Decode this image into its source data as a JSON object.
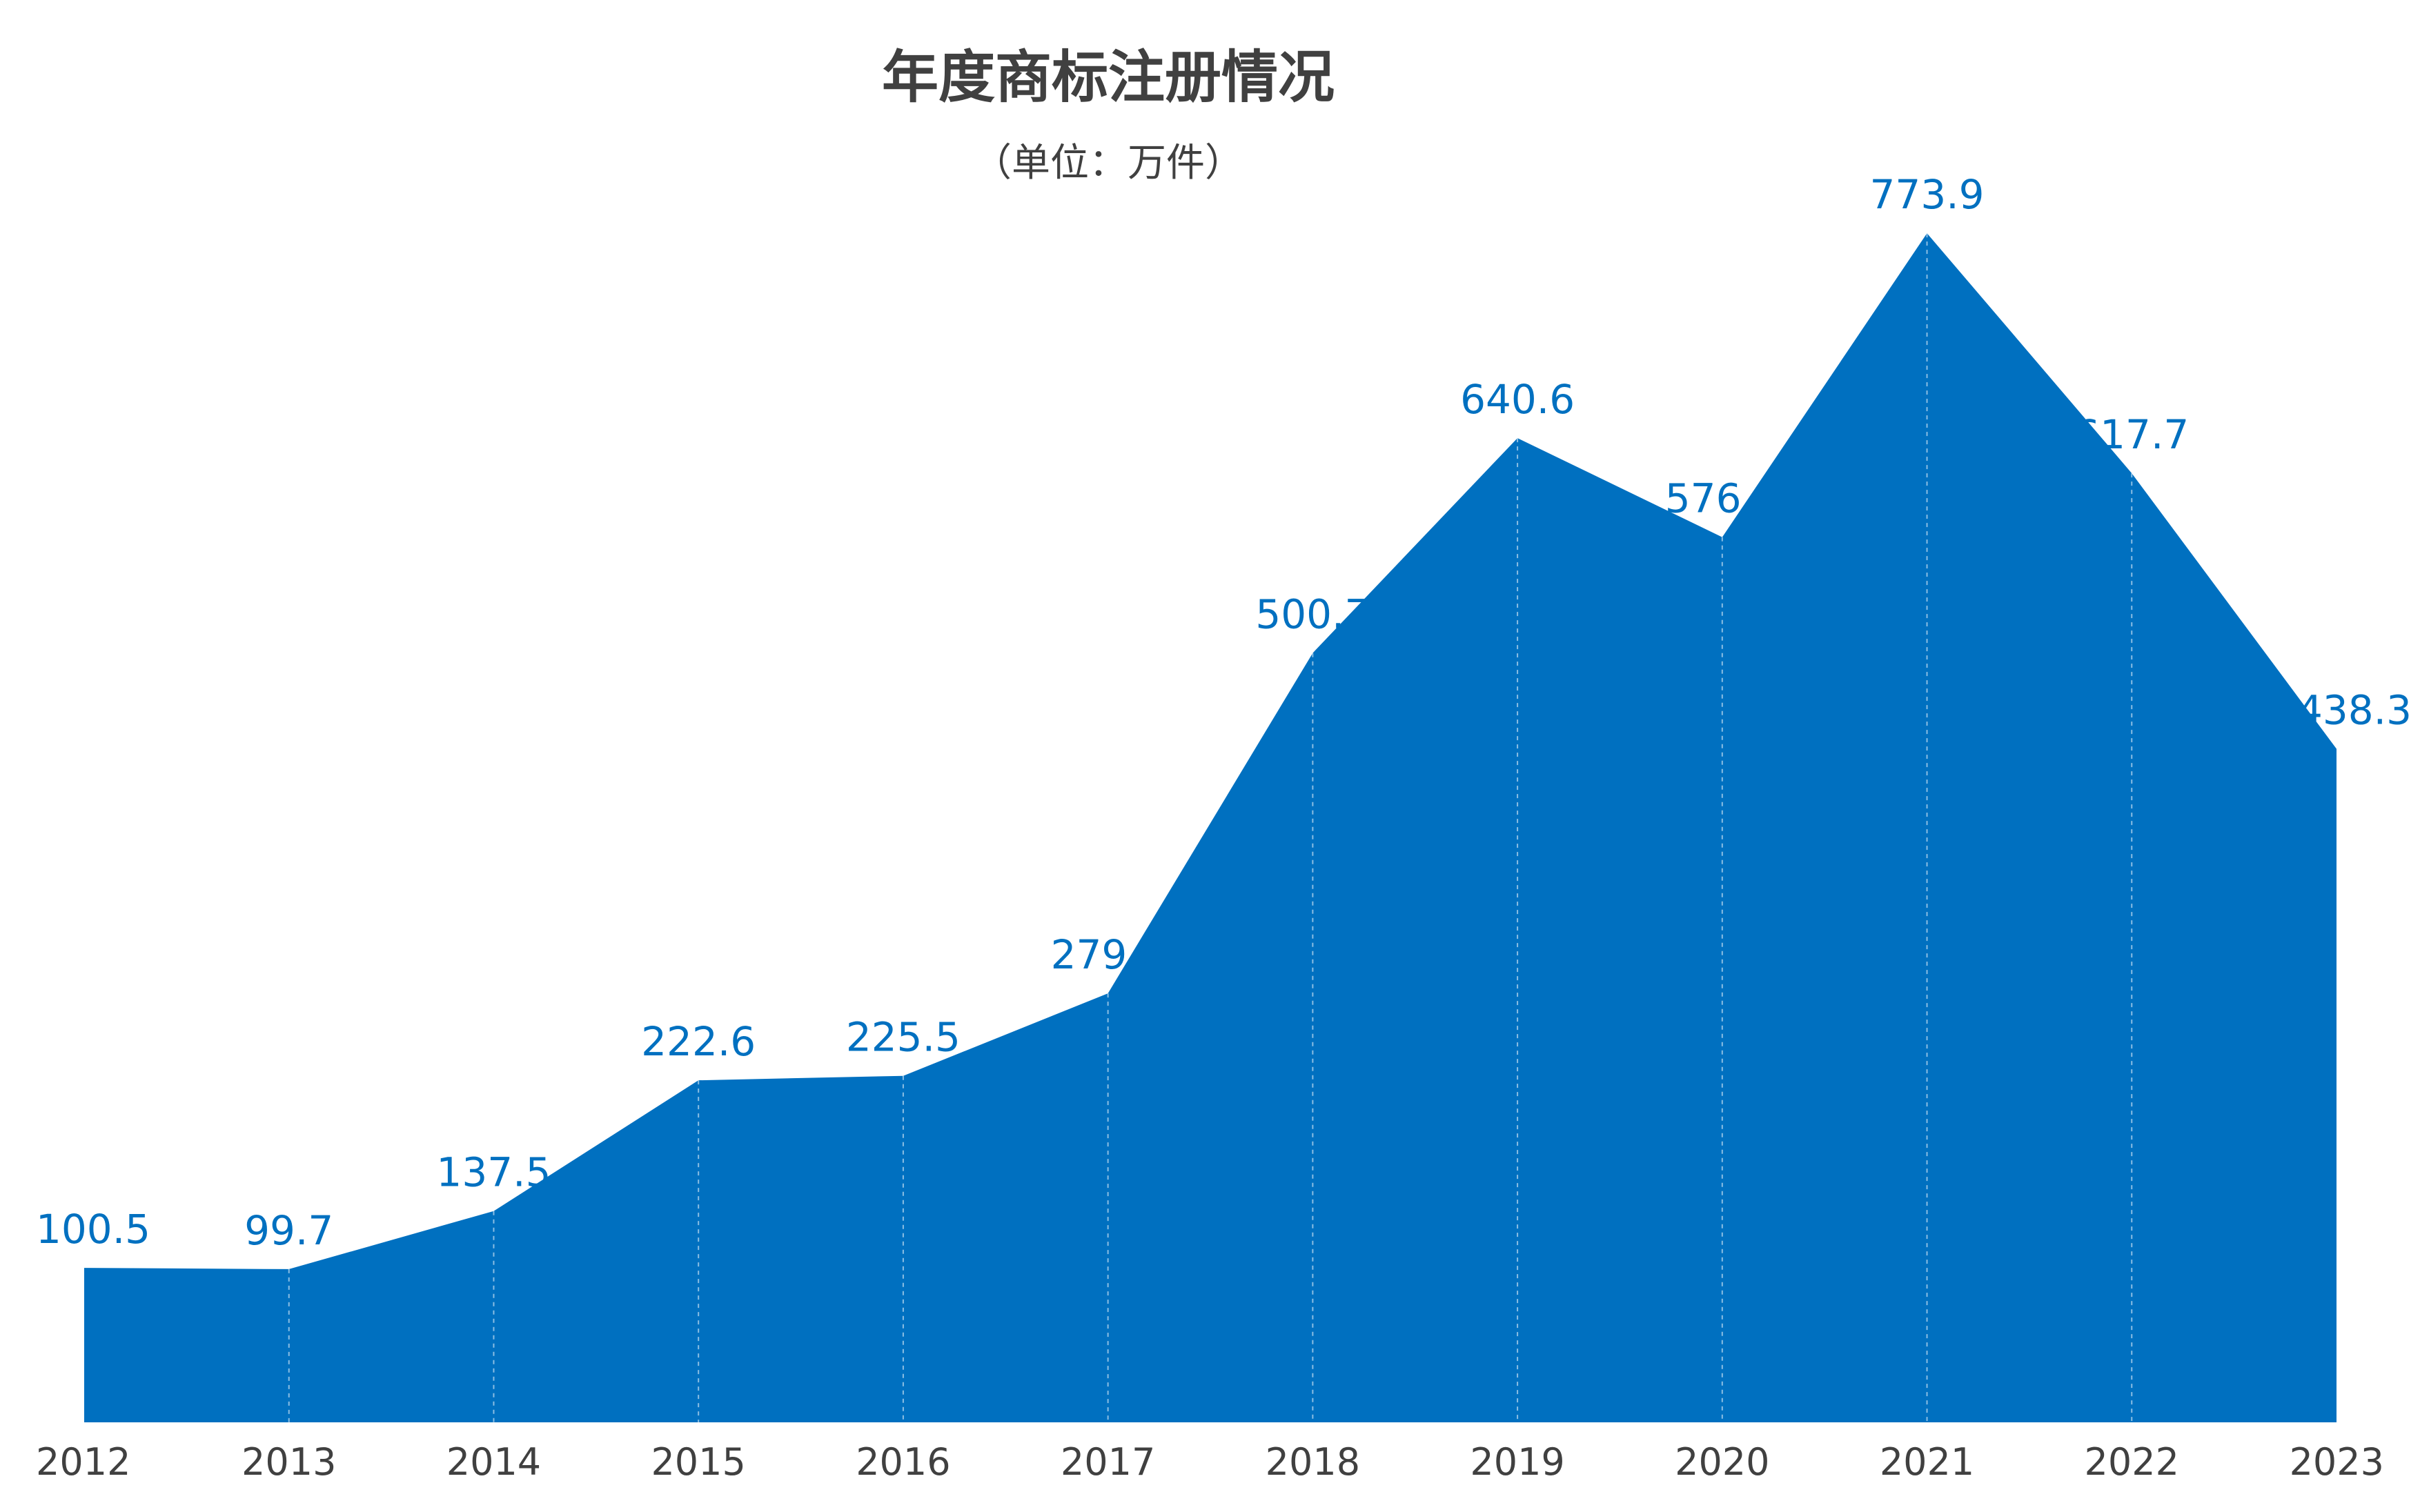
{
  "chart_data": {
    "type": "area",
    "title": "年度商标注册情况",
    "subtitle": "（单位：万件）",
    "x": [
      "2012",
      "2013",
      "2014",
      "2015",
      "2016",
      "2017",
      "2018",
      "2019",
      "2020",
      "2021",
      "2022",
      "2023"
    ],
    "series": [
      {
        "values": [
          100.5,
          99.7,
          137.5,
          222.6,
          225.5,
          279.2,
          500.7,
          640.6,
          576.1,
          773.9,
          617.7,
          438.3
        ],
        "labels": [
          "100.5",
          "99.7",
          "137.5",
          "222.6",
          "225.5",
          "279.2",
          "500.7",
          "640.6",
          "576.1",
          "773.9",
          "617.7",
          "438.3"
        ]
      }
    ],
    "xlabel": "",
    "ylabel": "",
    "ylim": [
      0,
      800
    ],
    "grid": false,
    "legend": "none",
    "colors": {
      "area": "#0070C0",
      "data_label": "#0070C0",
      "text": "#404040"
    }
  }
}
